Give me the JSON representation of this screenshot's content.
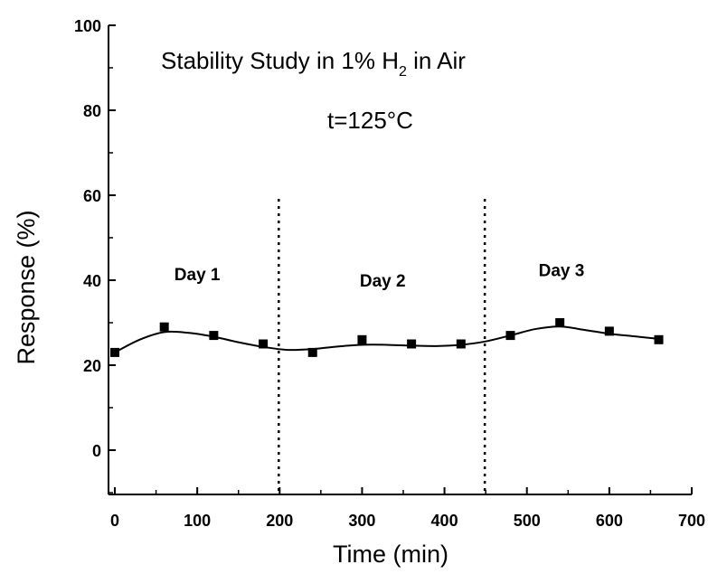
{
  "chart_data": {
    "type": "scatter",
    "title": "",
    "annotations": {
      "title_main": "Stability Study in 1% H",
      "title_sub": "2",
      "title_end": " in Air",
      "temperature": "t=125°C"
    },
    "xlabel": "Time (min)",
    "ylabel": "Response (%)",
    "xlim": [
      0,
      700
    ],
    "ylim": [
      0,
      100
    ],
    "x_ticks": [
      0,
      100,
      200,
      300,
      400,
      500,
      600,
      700
    ],
    "x_tick_labels": [
      "0",
      "100",
      "200",
      "300",
      "400",
      "500",
      "600",
      "700"
    ],
    "y_ticks": [
      0,
      20,
      40,
      60,
      80,
      100
    ],
    "y_tick_labels": [
      "0",
      "20",
      "40",
      "60",
      "80",
      "100"
    ],
    "grid": false,
    "series": [
      {
        "x": [
          0,
          60,
          120,
          180,
          240,
          300,
          360,
          420,
          480,
          540,
          600,
          660
        ],
        "values": [
          23,
          29,
          27,
          25,
          23,
          26,
          25,
          25,
          27,
          30,
          28,
          26
        ],
        "marker": "square",
        "color": "#000000"
      }
    ],
    "fit_curve": {
      "x": [
        0,
        30,
        60,
        90,
        120,
        150,
        180,
        210,
        240,
        270,
        300,
        330,
        360,
        390,
        420,
        450,
        480,
        510,
        540,
        570,
        600,
        630,
        660
      ],
      "values": [
        23,
        26,
        27.8,
        27.6,
        26.7,
        25.4,
        24.3,
        23.6,
        23.8,
        24.4,
        24.8,
        24.8,
        24.6,
        24.5,
        24.8,
        25.6,
        27,
        28.5,
        29.1,
        28.3,
        27.4,
        26.8,
        26.2
      ]
    },
    "dividers": [
      {
        "x": 200,
        "label": "Day 2"
      },
      {
        "x": 450,
        "label": "Day 3"
      }
    ],
    "day_labels": [
      {
        "label": "Day 1",
        "x": 100,
        "y": 40
      },
      {
        "label": "Day 2",
        "x": 325,
        "y": 38.5
      },
      {
        "label": "Day 3",
        "x": 542,
        "y": 41
      }
    ]
  }
}
